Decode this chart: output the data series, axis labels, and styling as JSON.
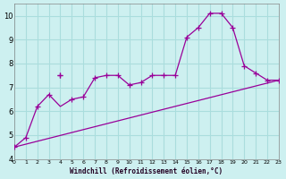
{
  "xlabel": "Windchill (Refroidissement éolien,°C)",
  "bg_color": "#cdf0f0",
  "line_color": "#990099",
  "grid_color": "#aadddd",
  "xlim": [
    0,
    23
  ],
  "ylim": [
    4,
    10.5
  ],
  "yticks": [
    4,
    5,
    6,
    7,
    8,
    9,
    10
  ],
  "xticks": [
    0,
    1,
    2,
    3,
    4,
    5,
    6,
    7,
    8,
    9,
    10,
    11,
    12,
    13,
    14,
    15,
    16,
    17,
    18,
    19,
    20,
    21,
    22,
    23
  ],
  "scatter_x": [
    0,
    1,
    2,
    3,
    4,
    5,
    6,
    7,
    8,
    9,
    10,
    11,
    12,
    13,
    14,
    15,
    16,
    17,
    18,
    19,
    20,
    21,
    22,
    23
  ],
  "scatter_y": [
    4.5,
    4.9,
    6.2,
    6.7,
    7.5,
    6.5,
    6.6,
    7.4,
    7.5,
    7.5,
    7.1,
    7.2,
    7.5,
    7.5,
    7.5,
    9.1,
    9.5,
    10.1,
    10.1,
    9.5,
    7.9,
    7.6,
    7.3,
    7.3
  ],
  "line1_x": [
    0,
    23
  ],
  "line1_y": [
    4.5,
    7.3
  ],
  "line2_x": [
    0,
    1,
    2,
    3,
    4,
    5,
    6,
    7,
    8,
    9,
    10,
    11,
    12,
    13,
    14,
    15,
    16,
    17,
    18,
    19,
    20,
    21,
    22,
    23
  ],
  "line2_y": [
    4.5,
    4.9,
    6.2,
    6.7,
    6.2,
    6.5,
    6.6,
    7.4,
    7.5,
    7.5,
    7.1,
    7.2,
    7.5,
    7.5,
    7.5,
    9.1,
    9.5,
    10.1,
    10.1,
    9.5,
    7.9,
    7.6,
    7.3,
    7.3
  ],
  "extra_marker_x": [
    4
  ],
  "extra_marker_y": [
    7.5
  ]
}
